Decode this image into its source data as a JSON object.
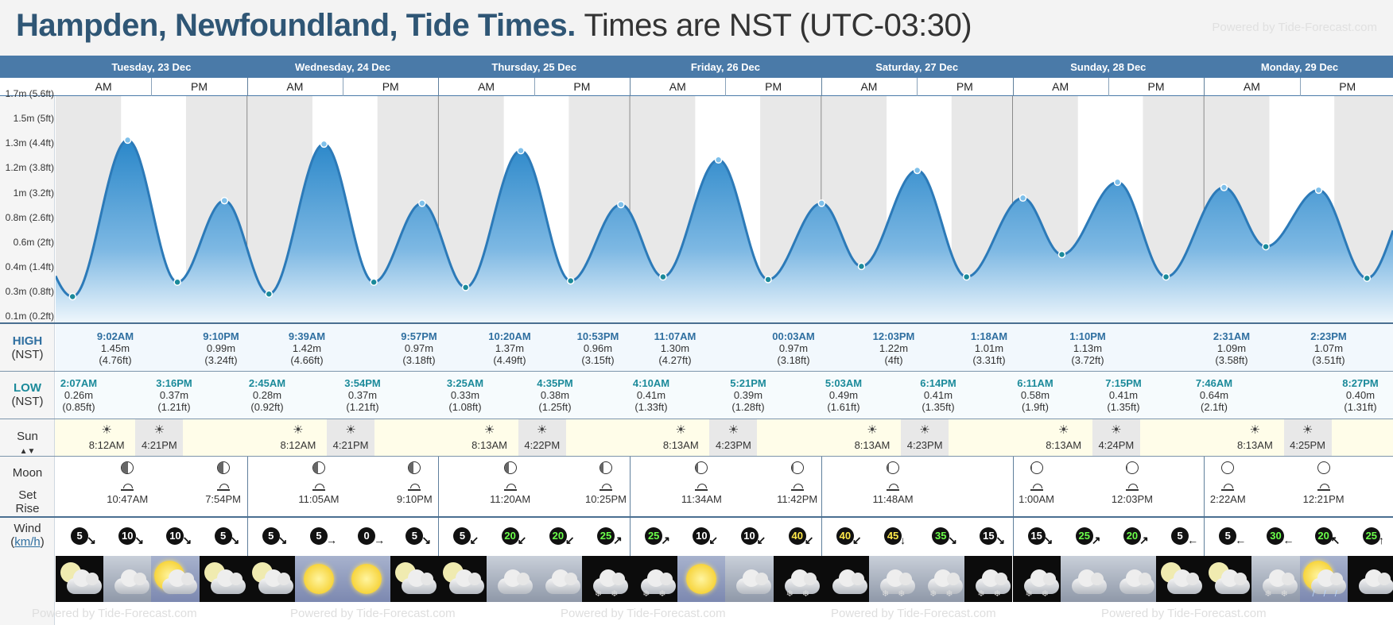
{
  "header": {
    "title": "Hampden, Newfoundland, Tide Times.",
    "timezone": "Times are NST (UTC-03:30)",
    "powered": "Powered by Tide-Forecast.com"
  },
  "footer": {
    "powered": "Powered by Tide-Forecast.com"
  },
  "days": [
    {
      "label": "Tuesday, 23 Dec",
      "am": "AM",
      "pm": "PM"
    },
    {
      "label": "Wednesday, 24 Dec",
      "am": "AM",
      "pm": "PM"
    },
    {
      "label": "Thursday, 25 Dec",
      "am": "AM",
      "pm": "PM"
    },
    {
      "label": "Friday, 26 Dec",
      "am": "AM",
      "pm": "PM"
    },
    {
      "label": "Saturday, 27 Dec",
      "am": "AM",
      "pm": "PM"
    },
    {
      "label": "Sunday, 28 Dec",
      "am": "AM",
      "pm": "PM"
    },
    {
      "label": "Monday, 29 Dec",
      "am": "AM",
      "pm": "PM"
    }
  ],
  "y_axis": {
    "labels": [
      "1.7m (5.6ft)",
      "1.5m (5ft)",
      "1.3m (4.4ft)",
      "1.2m (3.8ft)",
      "1m (3.2ft)",
      "0.8m (2.6ft)",
      "0.6m (2ft)",
      "0.4m (1.4ft)",
      "0.3m (0.8ft)",
      "0.1m (0.2ft)"
    ]
  },
  "row_labels": {
    "high": "HIGH",
    "high_tz": "(NST)",
    "low": "LOW",
    "low_tz": "(NST)",
    "sun": "Sun",
    "moon": "Moon",
    "set": "Set",
    "rise": "Rise",
    "wind": "Wind",
    "wind_unit": "km/h"
  },
  "high_tides": [
    {
      "time": "9:02AM",
      "m": "1.45m",
      "ft": "(4.76ft)"
    },
    {
      "time": "9:10PM",
      "m": "0.99m",
      "ft": "(3.24ft)"
    },
    {
      "time": "9:39AM",
      "m": "1.42m",
      "ft": "(4.66ft)"
    },
    {
      "time": "9:57PM",
      "m": "0.97m",
      "ft": "(3.18ft)"
    },
    {
      "time": "10:20AM",
      "m": "1.37m",
      "ft": "(4.49ft)"
    },
    {
      "time": "10:53PM",
      "m": "0.96m",
      "ft": "(3.15ft)"
    },
    {
      "time": "11:07AM",
      "m": "1.30m",
      "ft": "(4.27ft)"
    },
    {
      "time": "00:03AM",
      "m": "0.97m",
      "ft": "(3.18ft)"
    },
    {
      "time": "12:03PM",
      "m": "1.22m",
      "ft": "(4ft)"
    },
    {
      "time": "1:18AM",
      "m": "1.01m",
      "ft": "(3.31ft)"
    },
    {
      "time": "1:10PM",
      "m": "1.13m",
      "ft": "(3.72ft)"
    },
    {
      "time": "2:31AM",
      "m": "1.09m",
      "ft": "(3.58ft)"
    },
    {
      "time": "2:23PM",
      "m": "1.07m",
      "ft": "(3.51ft)"
    }
  ],
  "low_tides": [
    {
      "time": "2:07AM",
      "m": "0.26m",
      "ft": "(0.85ft)"
    },
    {
      "time": "3:16PM",
      "m": "0.37m",
      "ft": "(1.21ft)"
    },
    {
      "time": "2:45AM",
      "m": "0.28m",
      "ft": "(0.92ft)"
    },
    {
      "time": "3:54PM",
      "m": "0.37m",
      "ft": "(1.21ft)"
    },
    {
      "time": "3:25AM",
      "m": "0.33m",
      "ft": "(1.08ft)"
    },
    {
      "time": "4:35PM",
      "m": "0.38m",
      "ft": "(1.25ft)"
    },
    {
      "time": "4:10AM",
      "m": "0.41m",
      "ft": "(1.33ft)"
    },
    {
      "time": "5:21PM",
      "m": "0.39m",
      "ft": "(1.28ft)"
    },
    {
      "time": "5:03AM",
      "m": "0.49m",
      "ft": "(1.61ft)"
    },
    {
      "time": "6:14PM",
      "m": "0.41m",
      "ft": "(1.35ft)"
    },
    {
      "time": "6:11AM",
      "m": "0.58m",
      "ft": "(1.9ft)"
    },
    {
      "time": "7:15PM",
      "m": "0.41m",
      "ft": "(1.35ft)"
    },
    {
      "time": "7:46AM",
      "m": "0.64m",
      "ft": "(2.1ft)"
    },
    {
      "time": "8:27PM",
      "m": "0.40m",
      "ft": "(1.31ft)"
    }
  ],
  "sun": [
    {
      "rise": "8:12AM",
      "set": "4:21PM"
    },
    {
      "rise": "8:12AM",
      "set": "4:21PM"
    },
    {
      "rise": "8:13AM",
      "set": "4:22PM"
    },
    {
      "rise": "8:13AM",
      "set": "4:23PM"
    },
    {
      "rise": "8:13AM",
      "set": "4:23PM"
    },
    {
      "rise": "8:13AM",
      "set": "4:24PM"
    },
    {
      "rise": "8:13AM",
      "set": "4:25PM"
    }
  ],
  "moon": [
    {
      "time": "10:47AM",
      "slot": 1
    },
    {
      "time": "7:54PM",
      "slot": 3
    },
    {
      "time": "11:05AM",
      "slot": 5
    },
    {
      "time": "9:10PM",
      "slot": 7
    },
    {
      "time": "11:20AM",
      "slot": 9
    },
    {
      "time": "10:25PM",
      "slot": 11
    },
    {
      "time": "11:34AM",
      "slot": 13
    },
    {
      "time": "11:42PM",
      "slot": 15
    },
    {
      "time": "11:48AM",
      "slot": 17
    },
    {
      "time": "1:00AM",
      "slot": 20
    },
    {
      "time": "12:03PM",
      "slot": 22
    },
    {
      "time": "2:22AM",
      "slot": 24
    },
    {
      "time": "12:21PM",
      "slot": 26
    }
  ],
  "wind": [
    {
      "v": "5",
      "dir": "↘",
      "c": "w"
    },
    {
      "v": "10",
      "dir": "↘",
      "c": "w"
    },
    {
      "v": "10",
      "dir": "↘",
      "c": "w"
    },
    {
      "v": "5",
      "dir": "↘",
      "c": "w"
    },
    {
      "v": "5",
      "dir": "↘",
      "c": "w"
    },
    {
      "v": "5",
      "dir": "→",
      "c": "w"
    },
    {
      "v": "0",
      "dir": "→",
      "c": "w"
    },
    {
      "v": "5",
      "dir": "↘",
      "c": "w"
    },
    {
      "v": "5",
      "dir": "↙",
      "c": "w"
    },
    {
      "v": "20",
      "dir": "↙",
      "c": "g"
    },
    {
      "v": "20",
      "dir": "↙",
      "c": "g"
    },
    {
      "v": "25",
      "dir": "↗",
      "c": "g"
    },
    {
      "v": "25",
      "dir": "↗",
      "c": "g"
    },
    {
      "v": "10",
      "dir": "↙",
      "c": "w"
    },
    {
      "v": "10",
      "dir": "↙",
      "c": "w"
    },
    {
      "v": "40",
      "dir": "↙",
      "c": "y"
    },
    {
      "v": "40",
      "dir": "↙",
      "c": "y"
    },
    {
      "v": "45",
      "dir": "↓",
      "c": "y"
    },
    {
      "v": "35",
      "dir": "↘",
      "c": "g"
    },
    {
      "v": "15",
      "dir": "↘",
      "c": "w"
    },
    {
      "v": "15",
      "dir": "↘",
      "c": "w"
    },
    {
      "v": "25",
      "dir": "↗",
      "c": "g"
    },
    {
      "v": "20",
      "dir": "↗",
      "c": "g"
    },
    {
      "v": "5",
      "dir": "←",
      "c": "w"
    },
    {
      "v": "5",
      "dir": "←",
      "c": "w"
    },
    {
      "v": "30",
      "dir": "←",
      "c": "g"
    },
    {
      "v": "20",
      "dir": "↖",
      "c": "g"
    },
    {
      "v": "25",
      "dir": "↑",
      "c": "g"
    }
  ],
  "weather": [
    "night-moon-cloud",
    "cloudy",
    "sun-cloud",
    "night-moon-cloud",
    "night-moon-cloud",
    "sunny",
    "sunny",
    "night-moon-cloud",
    "night-moon-cloud",
    "cloudy",
    "cloudy",
    "night-snow",
    "night-snow",
    "sunny",
    "cloudy",
    "night-snow",
    "night-cloud",
    "cloudy-snow",
    "cloudy-snow",
    "night-snow",
    "night-snow",
    "cloudy",
    "cloudy",
    "night-moon-cloud",
    "night-moon-cloud",
    "cloudy-snow",
    "sun-rain",
    "night-cloud"
  ],
  "chart_data": {
    "type": "area",
    "title": "",
    "series_units": "m",
    "ylim": [
      0.1,
      1.7
    ],
    "extremes": [
      {
        "t": "Tue 2:07AM",
        "h": 0.26
      },
      {
        "t": "Tue 9:02AM",
        "h": 1.45
      },
      {
        "t": "Tue 3:16PM",
        "h": 0.37
      },
      {
        "t": "Tue 9:10PM",
        "h": 0.99
      },
      {
        "t": "Wed 2:45AM",
        "h": 0.28
      },
      {
        "t": "Wed 9:39AM",
        "h": 1.42
      },
      {
        "t": "Wed 3:54PM",
        "h": 0.37
      },
      {
        "t": "Wed 9:57PM",
        "h": 0.97
      },
      {
        "t": "Thu 3:25AM",
        "h": 0.33
      },
      {
        "t": "Thu 10:20AM",
        "h": 1.37
      },
      {
        "t": "Thu 4:35PM",
        "h": 0.38
      },
      {
        "t": "Thu 10:53PM",
        "h": 0.96
      },
      {
        "t": "Fri 4:10AM",
        "h": 0.41
      },
      {
        "t": "Fri 11:07AM",
        "h": 1.3
      },
      {
        "t": "Fri 5:21PM",
        "h": 0.39
      },
      {
        "t": "Sat 00:03AM",
        "h": 0.97
      },
      {
        "t": "Sat 5:03AM",
        "h": 0.49
      },
      {
        "t": "Sat 12:03PM",
        "h": 1.22
      },
      {
        "t": "Sat 6:14PM",
        "h": 0.41
      },
      {
        "t": "Sun 1:18AM",
        "h": 1.01
      },
      {
        "t": "Sun 6:11AM",
        "h": 0.58
      },
      {
        "t": "Sun 1:10PM",
        "h": 1.13
      },
      {
        "t": "Sun 7:15PM",
        "h": 0.41
      },
      {
        "t": "Mon 2:31AM",
        "h": 1.09
      },
      {
        "t": "Mon 7:46AM",
        "h": 0.64
      },
      {
        "t": "Mon 2:23PM",
        "h": 1.07
      },
      {
        "t": "Mon 8:27PM",
        "h": 0.4
      }
    ]
  }
}
